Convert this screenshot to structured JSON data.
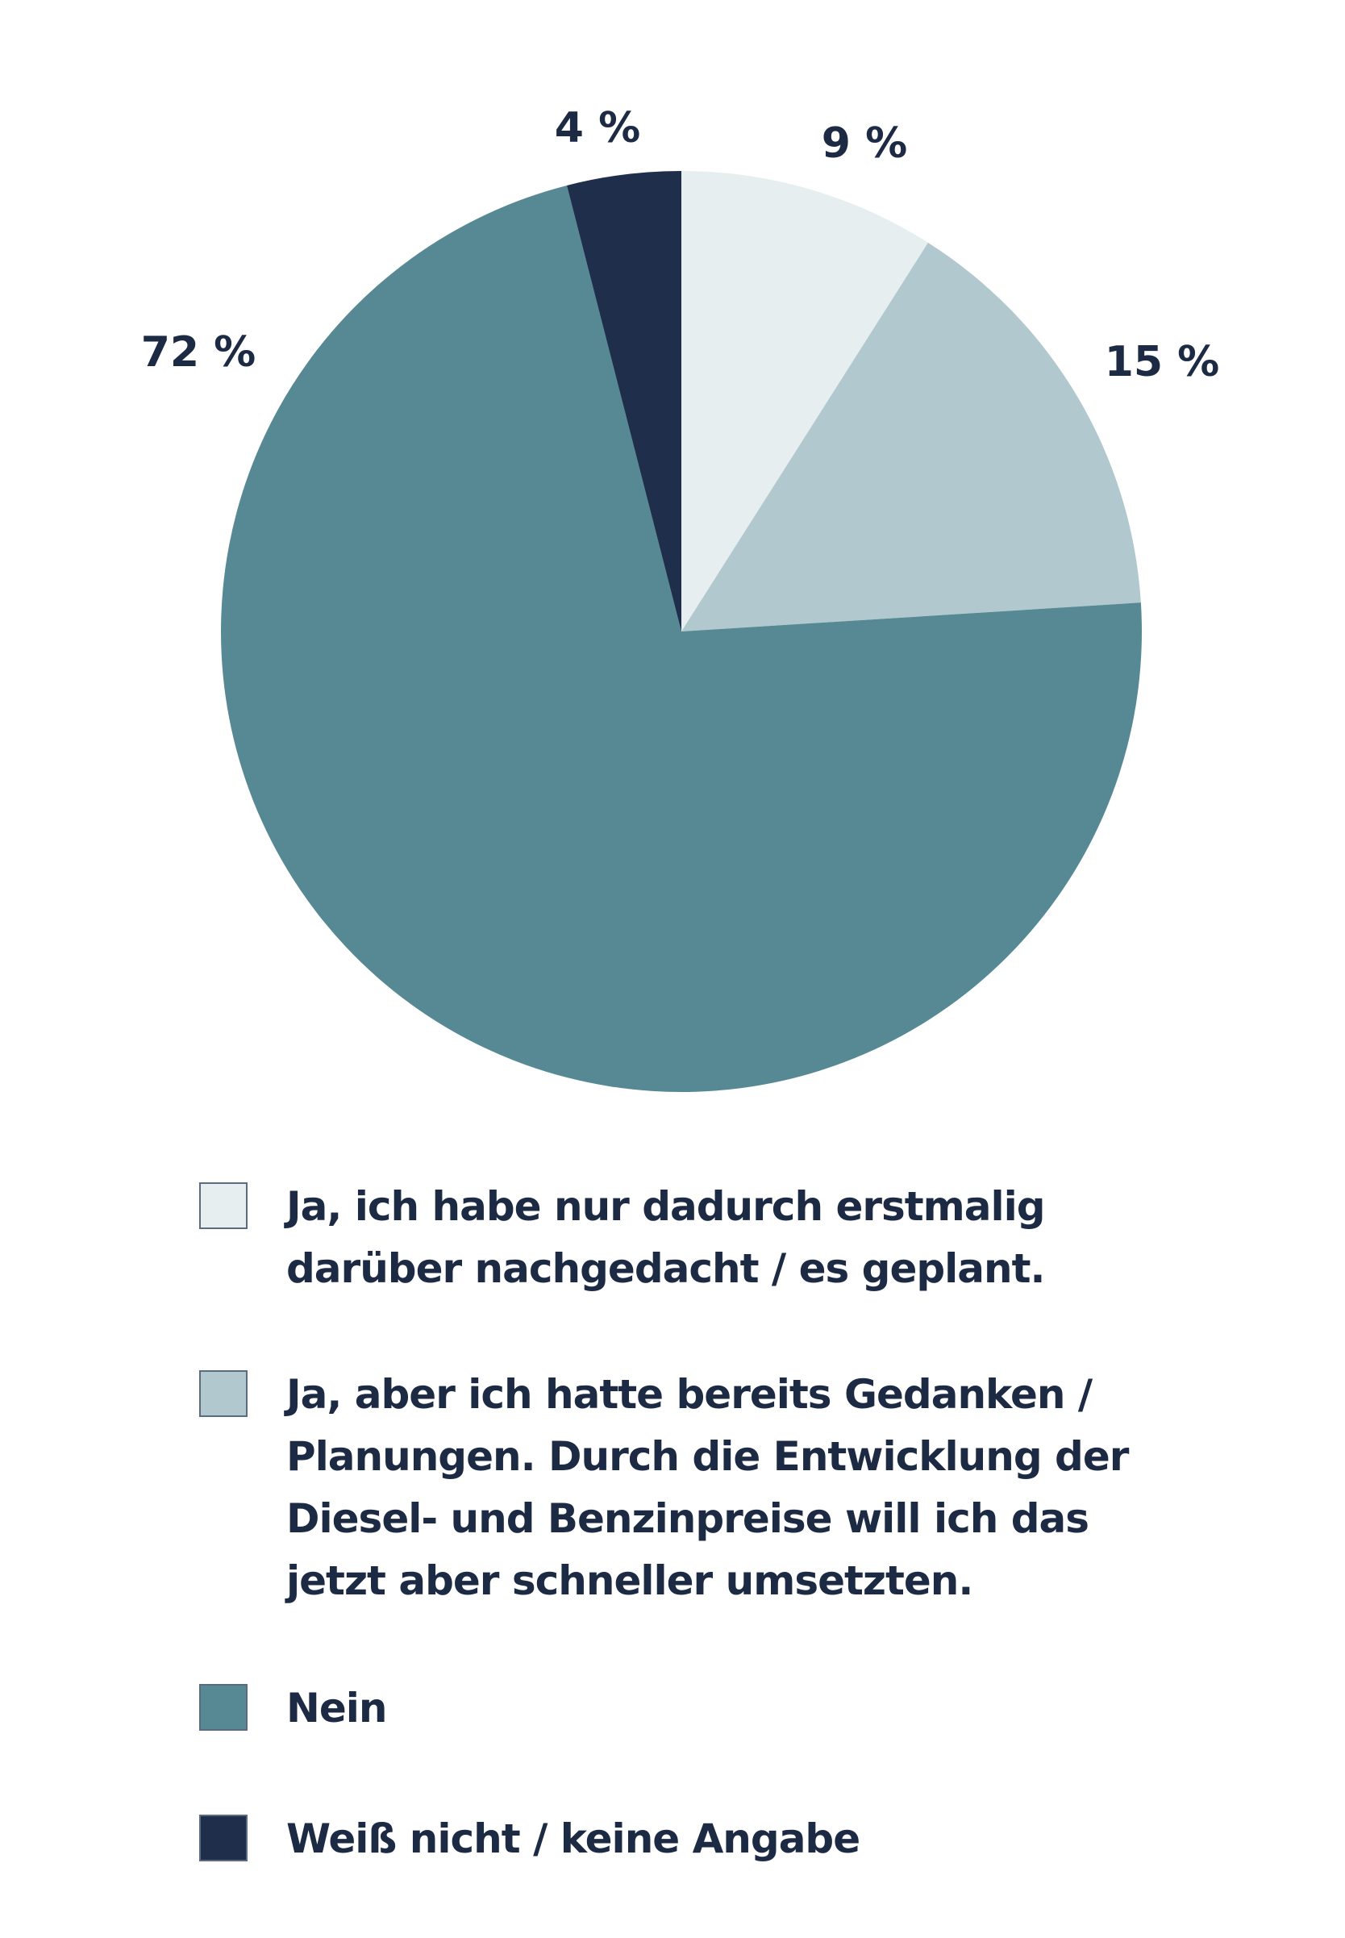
{
  "chart_data": {
    "type": "pie",
    "categories": [
      "Ja, ich habe nur dadurch erstmalig darüber nachgedacht / es geplant.",
      "Ja, aber ich hatte bereits Gedanken / Planungen. Durch die Entwicklung der Diesel- und Benzinpreise will ich das jetzt aber schneller umsetzten.",
      "Nein",
      "Weiß nicht / keine Angabe"
    ],
    "values": [
      9,
      15,
      72,
      4
    ],
    "value_labels": [
      "9 %",
      "15 %",
      "72 %",
      "4 %"
    ],
    "colors": [
      "#e6eef0",
      "#b1c9ce",
      "#568994",
      "#1f2e4a"
    ]
  }
}
